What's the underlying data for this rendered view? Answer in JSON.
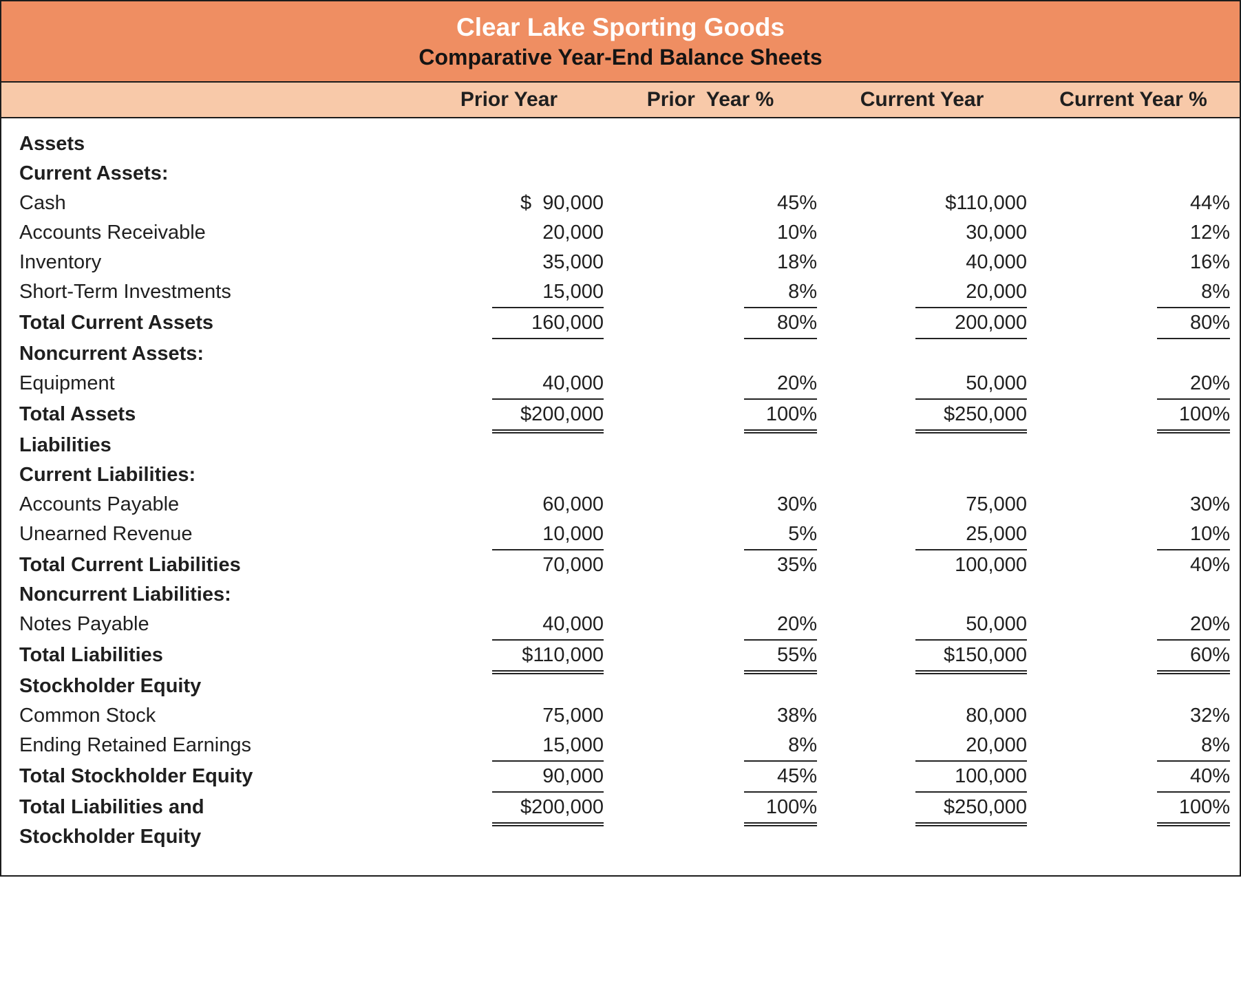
{
  "header": {
    "title": "Clear Lake Sporting Goods",
    "subtitle": "Comparative Year-End Balance Sheets"
  },
  "columns": [
    "Prior Year",
    "Prior  Year %",
    "Current Year",
    "Current Year %"
  ],
  "colors": {
    "header_bg": "#EF8E62",
    "column_header_bg": "#F8C9A9",
    "title_text": "#FFFFFF",
    "body_text": "#1F1F1F",
    "rule_color": "#222222"
  },
  "rows": [
    {
      "label": "Assets",
      "bold": true,
      "values": [
        "",
        "",
        "",
        ""
      ],
      "underline": "none"
    },
    {
      "label": "Current Assets:",
      "bold": true,
      "values": [
        "",
        "",
        "",
        ""
      ],
      "underline": "none"
    },
    {
      "label": "Cash",
      "bold": false,
      "values": [
        "$  90,000",
        "45%",
        "$110,000",
        "44%"
      ],
      "underline": "none"
    },
    {
      "label": "Accounts Receivable",
      "bold": false,
      "values": [
        "20,000",
        "10%",
        "30,000",
        "12%"
      ],
      "underline": "none"
    },
    {
      "label": "Inventory",
      "bold": false,
      "values": [
        "35,000",
        "18%",
        "40,000",
        "16%"
      ],
      "underline": "none"
    },
    {
      "label": "Short-Term Investments",
      "bold": false,
      "values": [
        "15,000",
        "8%",
        "20,000",
        "8%"
      ],
      "underline": "single"
    },
    {
      "label": "Total Current Assets",
      "bold": true,
      "values": [
        "160,000",
        "80%",
        "200,000",
        "80%"
      ],
      "underline": "single"
    },
    {
      "label": "Noncurrent Assets:",
      "bold": true,
      "values": [
        "",
        "",
        "",
        ""
      ],
      "underline": "none"
    },
    {
      "label": "Equipment",
      "bold": false,
      "values": [
        "40,000",
        "20%",
        "50,000",
        "20%"
      ],
      "underline": "single"
    },
    {
      "label": "Total Assets",
      "bold": true,
      "values": [
        "$200,000",
        "100%",
        "$250,000",
        "100%"
      ],
      "underline": "double"
    },
    {
      "label": "Liabilities",
      "bold": true,
      "values": [
        "",
        "",
        "",
        ""
      ],
      "underline": "none"
    },
    {
      "label": "Current Liabilities:",
      "bold": true,
      "values": [
        "",
        "",
        "",
        ""
      ],
      "underline": "none"
    },
    {
      "label": "Accounts Payable",
      "bold": false,
      "values": [
        "60,000",
        "30%",
        "75,000",
        "30%"
      ],
      "underline": "none"
    },
    {
      "label": "Unearned Revenue",
      "bold": false,
      "values": [
        "10,000",
        "5%",
        "25,000",
        "10%"
      ],
      "underline": "single"
    },
    {
      "label": "Total Current Liabilities",
      "bold": true,
      "values": [
        "70,000",
        "35%",
        "100,000",
        "40%"
      ],
      "underline": "none"
    },
    {
      "label": "Noncurrent Liabilities:",
      "bold": true,
      "values": [
        "",
        "",
        "",
        ""
      ],
      "underline": "none"
    },
    {
      "label": "Notes Payable",
      "bold": false,
      "values": [
        "40,000",
        "20%",
        "50,000",
        "20%"
      ],
      "underline": "single"
    },
    {
      "label": "Total Liabilities",
      "bold": true,
      "values": [
        "$110,000",
        "55%",
        "$150,000",
        "60%"
      ],
      "underline": "double"
    },
    {
      "label": "Stockholder Equity",
      "bold": true,
      "values": [
        "",
        "",
        "",
        ""
      ],
      "underline": "none"
    },
    {
      "label": "Common Stock",
      "bold": false,
      "values": [
        "75,000",
        "38%",
        "80,000",
        "32%"
      ],
      "underline": "none"
    },
    {
      "label": "Ending Retained Earnings",
      "bold": false,
      "values": [
        "15,000",
        "8%",
        "20,000",
        "8%"
      ],
      "underline": "single"
    },
    {
      "label": "Total Stockholder Equity",
      "bold": true,
      "values": [
        "90,000",
        "45%",
        "100,000",
        "40%"
      ],
      "underline": "single"
    },
    {
      "label": "Total Liabilities and\nStockholder Equity",
      "bold": true,
      "values": [
        "$200,000",
        "100%",
        "$250,000",
        "100%"
      ],
      "underline": "double"
    }
  ]
}
